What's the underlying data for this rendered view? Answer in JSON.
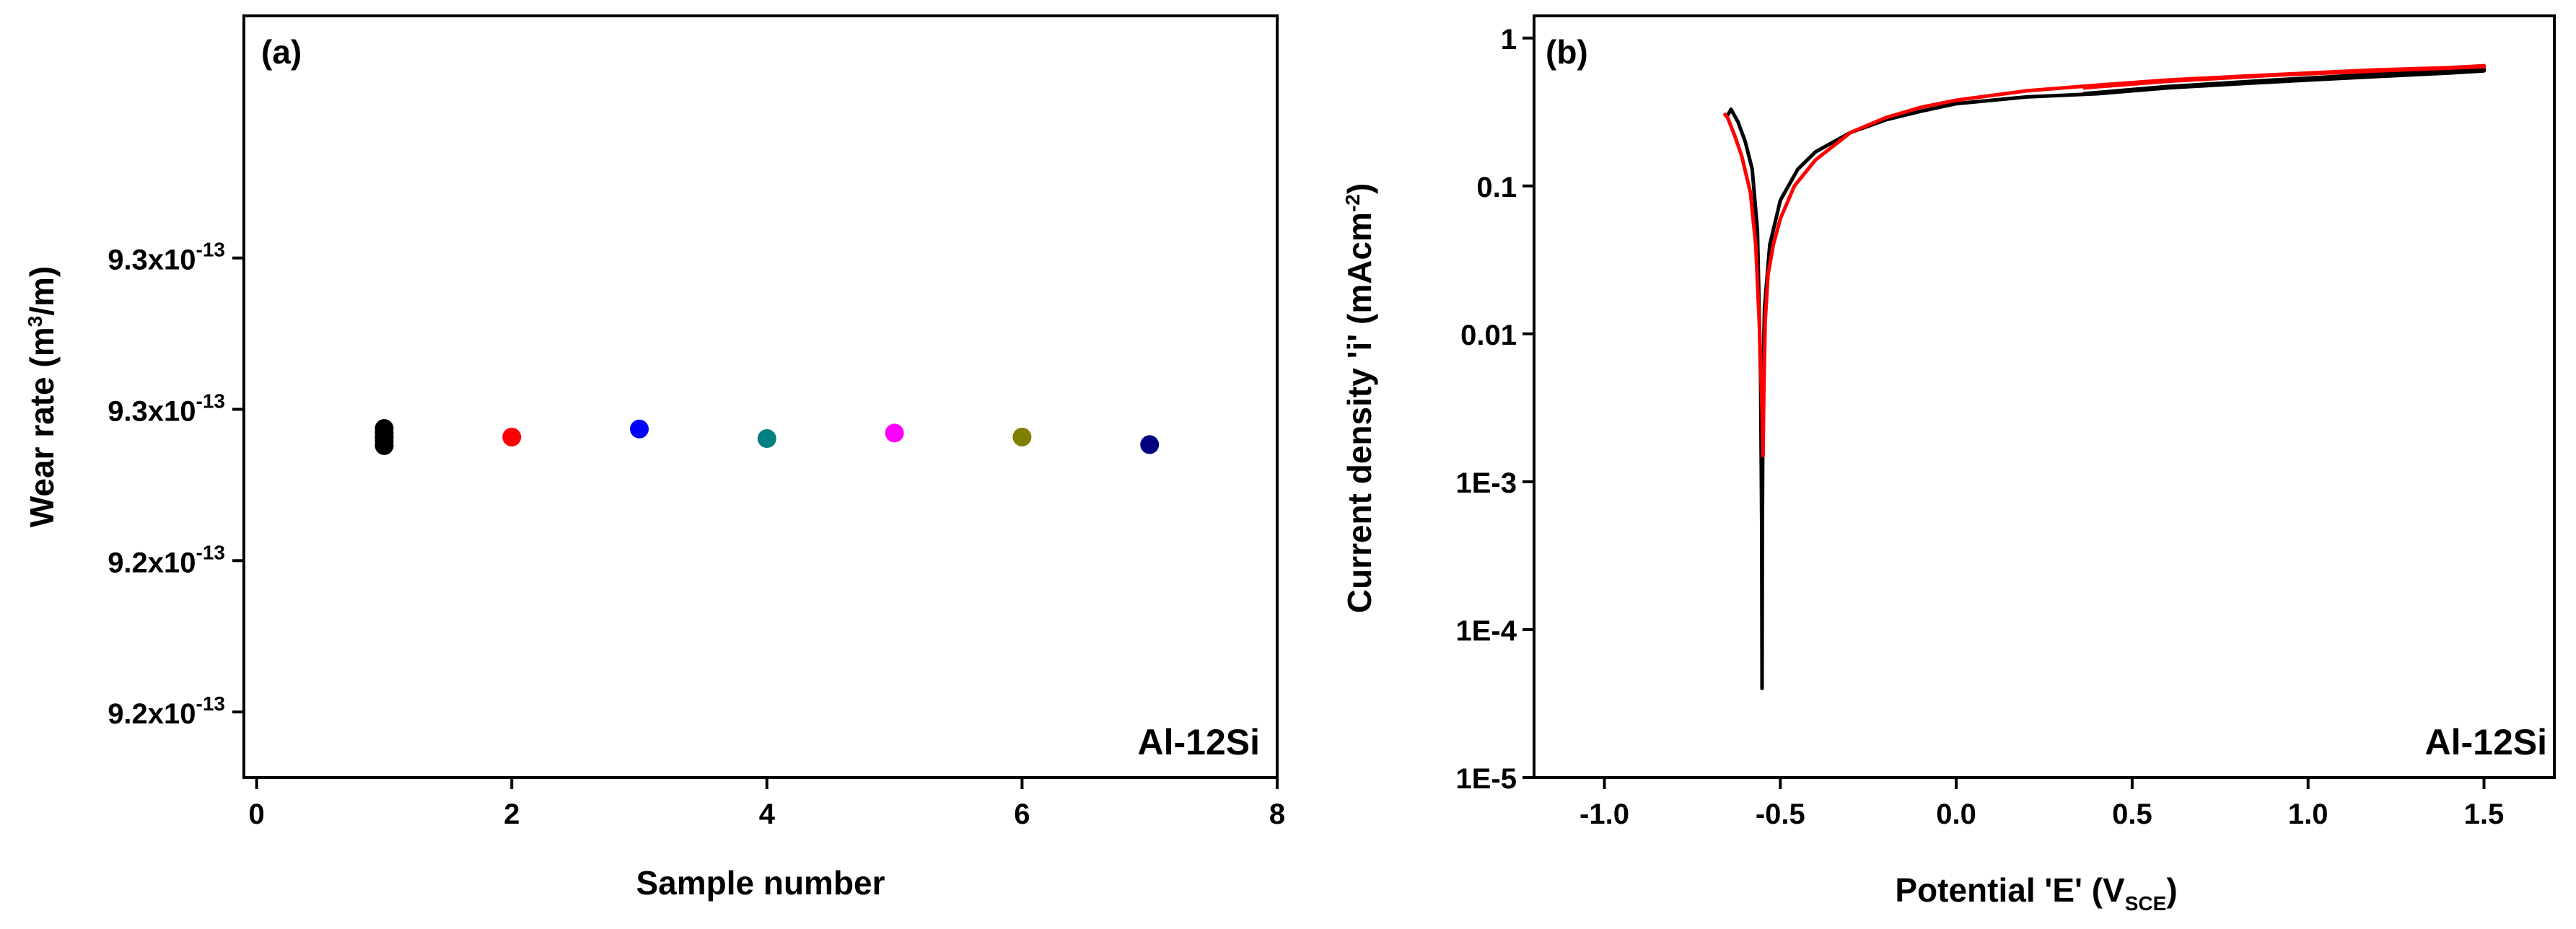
{
  "chart_data": [
    {
      "panel": "(a)",
      "type": "scatter",
      "xlabel": "Sample number",
      "ylabel": {
        "pre": "Wear rate (m",
        "sup": "3",
        "post": "/m)"
      },
      "xlim": [
        -0.1,
        8
      ],
      "ylim": [
        9.1795e-13,
        9.3305e-13
      ],
      "xticks": [
        0,
        2,
        4,
        6,
        8
      ],
      "yticks": [
        {
          "value": 9.1925e-13,
          "base": "9.2x10",
          "exp": "-13"
        },
        {
          "value": 9.2225e-13,
          "base": "9.2x10",
          "exp": "-13"
        },
        {
          "value": 9.2525e-13,
          "base": "9.3x10",
          "exp": "-13"
        },
        {
          "value": 9.2825e-13,
          "base": "9.3x10",
          "exp": "-13"
        }
      ],
      "annotation": "Al-12Si",
      "points": [
        {
          "x": 1,
          "y": 9.2487e-13,
          "color": "#000000"
        },
        {
          "x": 1,
          "y": 9.2478e-13,
          "color": "#000000"
        },
        {
          "x": 1,
          "y": 9.247e-13,
          "color": "#000000"
        },
        {
          "x": 1,
          "y": 9.2462e-13,
          "color": "#000000"
        },
        {
          "x": 1,
          "y": 9.2453e-13,
          "color": "#000000"
        },
        {
          "x": 2,
          "y": 9.247e-13,
          "color": "#ff0000"
        },
        {
          "x": 3,
          "y": 9.2486e-13,
          "color": "#0000ff"
        },
        {
          "x": 4,
          "y": 9.2467e-13,
          "color": "#008080"
        },
        {
          "x": 5,
          "y": 9.2478e-13,
          "color": "#ff00ff"
        },
        {
          "x": 6,
          "y": 9.247e-13,
          "color": "#808000"
        },
        {
          "x": 7,
          "y": 9.2455e-13,
          "color": "#000080"
        }
      ]
    },
    {
      "panel": "(b)",
      "type": "line",
      "xlabel": {
        "pre": "Potential 'E' (V",
        "sub": "SCE",
        "post": ")"
      },
      "ylabel": {
        "pre": "Current density 'i' (mAcm",
        "sup": "-2",
        "post": ")"
      },
      "xlim": [
        -1.2,
        1.7
      ],
      "ylim_log10": [
        -5,
        0.15
      ],
      "xticks": [
        {
          "value": -1.0,
          "label": "-1.0"
        },
        {
          "value": -0.5,
          "label": "-0.5"
        },
        {
          "value": 0.0,
          "label": "0.0"
        },
        {
          "value": 0.5,
          "label": "0.5"
        },
        {
          "value": 1.0,
          "label": "1.0"
        },
        {
          "value": 1.5,
          "label": "1.5"
        }
      ],
      "yticks": [
        {
          "value": 1,
          "label": "1"
        },
        {
          "value": 0.1,
          "label": "0.1"
        },
        {
          "value": 0.01,
          "label": "0.01"
        },
        {
          "value": 0.001,
          "label": "1E-3"
        },
        {
          "value": 0.0001,
          "label": "1E-4"
        },
        {
          "value": 1e-05,
          "label": "1E-5"
        }
      ],
      "annotation": "Al-12Si",
      "series": [
        {
          "name": "black curve",
          "color": "#000000",
          "points": [
            [
              -0.65,
              0.3
            ],
            [
              -0.64,
              0.33
            ],
            [
              -0.62,
              0.27
            ],
            [
              -0.6,
              0.2
            ],
            [
              -0.58,
              0.13
            ],
            [
              -0.565,
              0.05
            ],
            [
              -0.556,
              0.005
            ],
            [
              -0.553,
              0.0005
            ],
            [
              -0.552,
              4e-05
            ],
            [
              -0.551,
              0.0005
            ],
            [
              -0.549,
              0.005
            ],
            [
              -0.545,
              0.015
            ],
            [
              -0.53,
              0.04
            ],
            [
              -0.5,
              0.08
            ],
            [
              -0.45,
              0.13
            ],
            [
              -0.4,
              0.17
            ],
            [
              -0.3,
              0.23
            ],
            [
              -0.2,
              0.28
            ],
            [
              -0.1,
              0.32
            ],
            [
              0.0,
              0.36
            ],
            [
              0.2,
              0.4
            ],
            [
              0.4,
              0.42
            ],
            [
              0.6,
              0.46
            ],
            [
              0.8,
              0.49
            ],
            [
              1.0,
              0.52
            ],
            [
              1.2,
              0.55
            ],
            [
              1.4,
              0.58
            ],
            [
              1.5,
              0.6
            ],
            [
              1.5,
              0.62
            ],
            [
              1.2,
              0.57
            ],
            [
              0.9,
              0.52
            ],
            [
              0.6,
              0.47
            ],
            [
              0.36,
              0.42
            ]
          ]
        },
        {
          "name": "red curve",
          "color": "#ff0000",
          "points": [
            [
              -0.66,
              0.31
            ],
            [
              -0.65,
              0.29
            ],
            [
              -0.63,
              0.22
            ],
            [
              -0.61,
              0.16
            ],
            [
              -0.585,
              0.09
            ],
            [
              -0.57,
              0.04
            ],
            [
              -0.56,
              0.012
            ],
            [
              -0.552,
              0.003
            ],
            [
              -0.549,
              0.0015
            ],
            [
              -0.547,
              0.004
            ],
            [
              -0.543,
              0.012
            ],
            [
              -0.535,
              0.025
            ],
            [
              -0.52,
              0.04
            ],
            [
              -0.5,
              0.06
            ],
            [
              -0.46,
              0.1
            ],
            [
              -0.4,
              0.15
            ],
            [
              -0.3,
              0.23
            ],
            [
              -0.2,
              0.29
            ],
            [
              -0.1,
              0.34
            ],
            [
              0.0,
              0.38
            ],
            [
              0.2,
              0.44
            ],
            [
              0.4,
              0.48
            ],
            [
              0.6,
              0.52
            ],
            [
              0.8,
              0.55
            ],
            [
              1.0,
              0.58
            ],
            [
              1.2,
              0.61
            ],
            [
              1.4,
              0.63
            ],
            [
              1.5,
              0.65
            ],
            [
              1.5,
              0.64
            ],
            [
              1.2,
              0.6
            ],
            [
              0.9,
              0.56
            ],
            [
              0.6,
              0.51
            ],
            [
              0.36,
              0.46
            ]
          ]
        }
      ]
    }
  ]
}
